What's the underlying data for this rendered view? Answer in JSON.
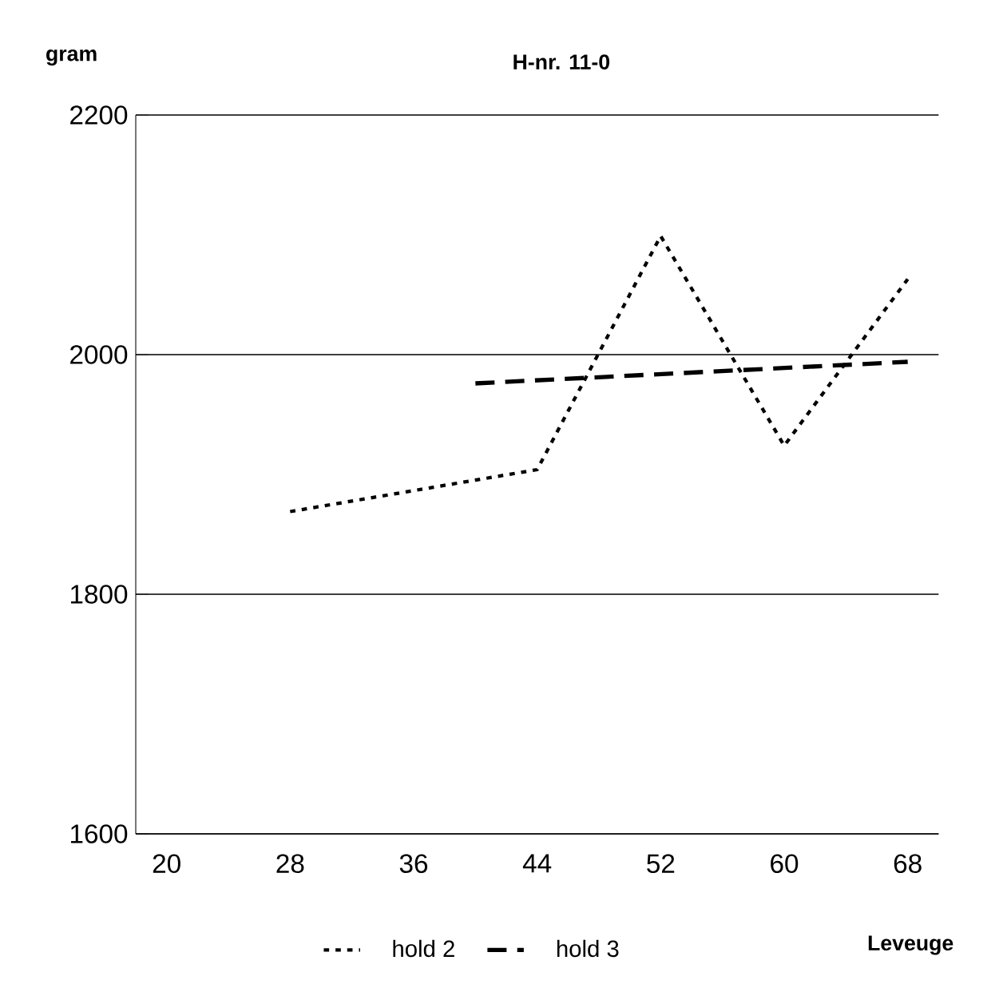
{
  "chart_data": {
    "type": "line",
    "title": "H-nr. 11-0",
    "xlabel": "Leveuge",
    "ylabel": "gram",
    "categories": [
      "20",
      null,
      "28",
      null,
      "36",
      null,
      "44",
      null,
      "52",
      null,
      "60",
      null,
      "68"
    ],
    "series": [
      {
        "name": "hold 2",
        "color": "#000000",
        "line_style": "dotted",
        "values": [
          null,
          null,
          1869,
          null,
          null,
          null,
          1904,
          null,
          2099,
          null,
          1924,
          null,
          2063
        ]
      },
      {
        "name": "hold 3",
        "color": "#000000",
        "line_style": "dashed",
        "values": [
          null,
          null,
          null,
          null,
          null,
          1976,
          null,
          null,
          null,
          null,
          null,
          null,
          1994
        ]
      }
    ],
    "ylim": [
      1600,
      2200
    ],
    "yticks": [
      1600,
      1800,
      2000,
      2200
    ],
    "grid": "y",
    "legend": "bottom",
    "marker": "none"
  }
}
